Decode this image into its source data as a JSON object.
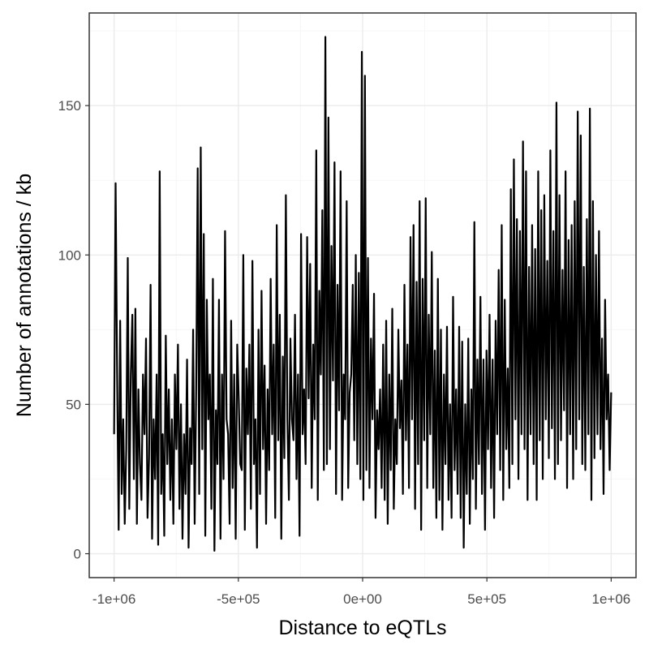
{
  "chart_data": {
    "type": "line",
    "xlabel": "Distance to eQTLs",
    "ylabel": "Number of annotations / kb",
    "xlim": [
      -1100000,
      1100000
    ],
    "ylim": [
      -8,
      181
    ],
    "x_ticks": [
      -1000000,
      -500000,
      0,
      500000,
      1000000
    ],
    "x_tick_labels": [
      "-1e+06",
      "-5e+05",
      "0e+00",
      "5e+05",
      "1e+06"
    ],
    "y_ticks": [
      0,
      50,
      100,
      150
    ],
    "y_tick_labels": [
      "0",
      "50",
      "100",
      "150"
    ],
    "grid": true,
    "line_color": "#000000",
    "bin_width_kb": 1,
    "x_range": [
      -1000000,
      1000000
    ],
    "series": [
      {
        "values": [
          40,
          124,
          60,
          8,
          78,
          20,
          45,
          10,
          35,
          99,
          15,
          60,
          80,
          25,
          82,
          10,
          55,
          30,
          18,
          60,
          40,
          72,
          12,
          32,
          90,
          5,
          45,
          25,
          60,
          3,
          128,
          20,
          40,
          6,
          73,
          30,
          55,
          18,
          45,
          10,
          60,
          35,
          70,
          15,
          50,
          5,
          40,
          20,
          65,
          2,
          42,
          30,
          75,
          10,
          55,
          129,
          20,
          136,
          35,
          107,
          6,
          85,
          45,
          60,
          15,
          92,
          1,
          48,
          30,
          85,
          5,
          60,
          25,
          108,
          45,
          40,
          10,
          78,
          22,
          60,
          5,
          70,
          52,
          30,
          28,
          100,
          8,
          62,
          40,
          70,
          15,
          98,
          30,
          45,
          2,
          75,
          20,
          88,
          35,
          63,
          10,
          55,
          28,
          92,
          40,
          70,
          12,
          110,
          38,
          80,
          5,
          66,
          32,
          120,
          45,
          18,
          72,
          45,
          38,
          80,
          25,
          60,
          6,
          107,
          40,
          55,
          30,
          106,
          52,
          97,
          22,
          70,
          45,
          135,
          18,
          88,
          60,
          115,
          28,
          173,
          30,
          146,
          35,
          103,
          58,
          131,
          20,
          90,
          48,
          128,
          18,
          60,
          45,
          118,
          22,
          54,
          60,
          90,
          38,
          100,
          30,
          94,
          25,
          168,
          18,
          160,
          28,
          99,
          22,
          72,
          45,
          87,
          12,
          48,
          35,
          55,
          22,
          70,
          18,
          78,
          10,
          60,
          28,
          82,
          15,
          45,
          30,
          75,
          42,
          58,
          20,
          90,
          38,
          70,
          22,
          106,
          45,
          110,
          15,
          91,
          30,
          118,
          8,
          92,
          38,
          119,
          22,
          80,
          40,
          101,
          22,
          68,
          12,
          92,
          18,
          75,
          8,
          60,
          30,
          76,
          18,
          50,
          12,
          86,
          28,
          55,
          20,
          76,
          12,
          71,
          2,
          50,
          20,
          72,
          10,
          55,
          25,
          111,
          15,
          65,
          30,
          86,
          20,
          65,
          8,
          68,
          35,
          80,
          22,
          65,
          12,
          78,
          40,
          95,
          28,
          110,
          18,
          85,
          35,
          62,
          22,
          122,
          30,
          132,
          45,
          112,
          25,
          108,
          40,
          138,
          35,
          128,
          18,
          96,
          40,
          110,
          30,
          102,
          18,
          128,
          38,
          115,
          25,
          120,
          45,
          98,
          32,
          135,
          42,
          108,
          25,
          151,
          30,
          120,
          38,
          95,
          48,
          128,
          22,
          105,
          40,
          110,
          25,
          118,
          35,
          148,
          45,
          140,
          30,
          96,
          28,
          112,
          40,
          149,
          18,
          118,
          32,
          100,
          40,
          108,
          35,
          72,
          20,
          85,
          45,
          60,
          28,
          54
        ]
      }
    ]
  }
}
